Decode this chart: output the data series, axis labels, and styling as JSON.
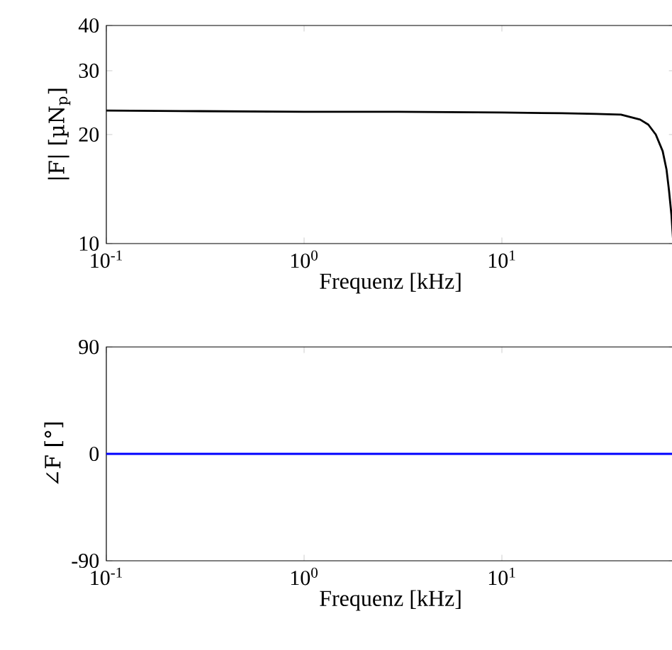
{
  "chart_data": [
    {
      "type": "line",
      "xlabel": "Frequenz [kHz]",
      "ylabel": "|F| [µN$_{p}$]",
      "log": "xy",
      "x": [
        0.1,
        0.3,
        1,
        3,
        10,
        20,
        30,
        40,
        50,
        55,
        60,
        65,
        68,
        70,
        72,
        73.6
      ],
      "series": [
        {
          "color": "#000000",
          "values": [
            23.3,
            23.2,
            23.1,
            23.1,
            23.0,
            22.9,
            22.8,
            22.7,
            22.0,
            21.3,
            20.0,
            18.0,
            16.0,
            14.0,
            12.0,
            10
          ]
        }
      ],
      "xlim": [
        0.1,
        75
      ],
      "ylim": [
        10,
        40
      ],
      "xticks": [
        {
          "value": 0.1,
          "label": "10$^{-1}$"
        },
        {
          "value": 1,
          "label": "10$^{0}$"
        },
        {
          "value": 10,
          "label": "10$^{1}$"
        }
      ],
      "yticks": [
        10,
        20,
        30,
        40
      ]
    },
    {
      "type": "line",
      "xlabel": "Frequenz [kHz]",
      "ylabel": "∠F [°]",
      "log": "x",
      "x": [
        0.1,
        75
      ],
      "series": [
        {
          "color": "#0000ff",
          "values": [
            0,
            0
          ]
        }
      ],
      "xlim": [
        0.1,
        75
      ],
      "ylim": [
        -90,
        90
      ],
      "xticks": [
        {
          "value": 0.1,
          "label": "10$^{-1}$"
        },
        {
          "value": 1,
          "label": "10$^{0}$"
        },
        {
          "value": 10,
          "label": "10$^{1}$"
        }
      ],
      "yticks": [
        -90,
        0,
        90
      ]
    }
  ]
}
